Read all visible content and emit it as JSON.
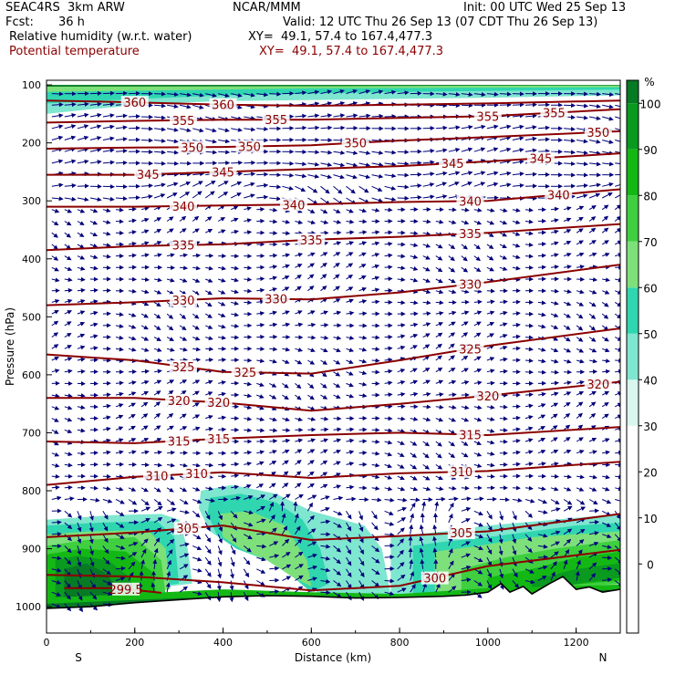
{
  "header": {
    "model_label": "SEAC4RS  3km ARW",
    "center": "NCAR/MMM",
    "init": "Init: 00 UTC Wed 25 Sep 13",
    "fcst_label": "Fcst:",
    "fcst_value": "36 h",
    "valid": "Valid: 12 UTC Thu 26 Sep 13 (07 CDT Thu 26 Sep 13)",
    "field1": "Relative humidity (w.r.t. water)",
    "field1_xy": "XY=  49.1, 57.4 to 167.4,477.3",
    "field2": "Potential temperature",
    "field2_xy": "XY=  49.1, 57.4 to 167.4,477.3"
  },
  "colors": {
    "theta_line": "#8b0000",
    "wind_arrow": "#00007a",
    "terrain_line": "#000000",
    "rh_bins": [
      "#d9f7ef",
      "#7fe6cf",
      "#2fd6b0",
      "#7ee07a",
      "#3fcf3f",
      "#14b814",
      "#0a9a1f",
      "#077a24"
    ]
  },
  "chart_data": {
    "type": "heatmap",
    "xlabel": "Distance (km)",
    "ylabel": "Pressure (hPa)",
    "xlim": [
      0,
      1300
    ],
    "ylim": [
      100,
      1000
    ],
    "x_ticks": [
      "0",
      "200",
      "400",
      "600",
      "800",
      "1000",
      "1200"
    ],
    "y_ticks": [
      "100",
      "200",
      "300",
      "400",
      "500",
      "600",
      "700",
      "800",
      "900",
      "1000"
    ],
    "direction_left": "S",
    "direction_right": "N",
    "colorbar": {
      "unit": "%",
      "ticks": [
        "0",
        "10",
        "20",
        "30",
        "40",
        "50",
        "60",
        "70",
        "80",
        "90",
        "100"
      ],
      "levels": [
        30,
        40,
        50,
        60,
        70,
        80,
        90,
        100
      ]
    },
    "theta_contours": [
      {
        "value": "360",
        "points": [
          [
            0,
            127
          ],
          [
            200,
            130
          ],
          [
            400,
            134
          ],
          [
            600,
            136
          ],
          [
            800,
            134
          ],
          [
            1000,
            132
          ],
          [
            1300,
            127
          ]
        ],
        "labels": [
          [
            200,
            "360"
          ],
          [
            400,
            "360"
          ]
        ]
      },
      {
        "value": "355",
        "points": [
          [
            0,
            165
          ],
          [
            200,
            162
          ],
          [
            400,
            160
          ],
          [
            600,
            160
          ],
          [
            800,
            157
          ],
          [
            1000,
            154
          ],
          [
            1300,
            142
          ]
        ],
        "labels": [
          [
            310,
            "355"
          ],
          [
            520,
            "355"
          ],
          [
            1000,
            "355"
          ],
          [
            1150,
            "355"
          ]
        ]
      },
      {
        "value": "350",
        "points": [
          [
            0,
            210
          ],
          [
            200,
            208
          ],
          [
            400,
            207
          ],
          [
            600,
            204
          ],
          [
            800,
            196
          ],
          [
            1000,
            190
          ],
          [
            1300,
            180
          ]
        ],
        "labels": [
          [
            330,
            "350"
          ],
          [
            460,
            "350"
          ],
          [
            700,
            "350"
          ],
          [
            1250,
            "350"
          ]
        ]
      },
      {
        "value": "345",
        "points": [
          [
            0,
            255
          ],
          [
            200,
            255
          ],
          [
            400,
            250
          ],
          [
            600,
            245
          ],
          [
            800,
            240
          ],
          [
            1000,
            232
          ],
          [
            1300,
            218
          ]
        ],
        "labels": [
          [
            230,
            "345"
          ],
          [
            400,
            "345"
          ],
          [
            920,
            "345"
          ],
          [
            1120,
            "345"
          ]
        ]
      },
      {
        "value": "340",
        "points": [
          [
            0,
            310
          ],
          [
            200,
            310
          ],
          [
            400,
            308
          ],
          [
            600,
            306
          ],
          [
            800,
            302
          ],
          [
            1000,
            300
          ],
          [
            1300,
            280
          ]
        ],
        "labels": [
          [
            310,
            "340"
          ],
          [
            560,
            "340"
          ],
          [
            960,
            "340"
          ],
          [
            1160,
            "340"
          ]
        ]
      },
      {
        "value": "335",
        "points": [
          [
            0,
            385
          ],
          [
            200,
            378
          ],
          [
            400,
            375
          ],
          [
            600,
            367
          ],
          [
            800,
            362
          ],
          [
            1000,
            355
          ],
          [
            1300,
            340
          ]
        ],
        "labels": [
          [
            310,
            "335"
          ],
          [
            600,
            "335"
          ],
          [
            960,
            "335"
          ]
        ]
      },
      {
        "value": "330",
        "points": [
          [
            0,
            480
          ],
          [
            200,
            475
          ],
          [
            400,
            468
          ],
          [
            600,
            470
          ],
          [
            800,
            458
          ],
          [
            1000,
            440
          ],
          [
            1300,
            410
          ]
        ],
        "labels": [
          [
            310,
            "330"
          ],
          [
            520,
            "330"
          ],
          [
            960,
            "330"
          ]
        ]
      },
      {
        "value": "325",
        "points": [
          [
            0,
            565
          ],
          [
            200,
            575
          ],
          [
            400,
            595
          ],
          [
            600,
            598
          ],
          [
            800,
            575
          ],
          [
            1000,
            550
          ],
          [
            1300,
            520
          ]
        ],
        "labels": [
          [
            310,
            "325"
          ],
          [
            450,
            "325"
          ],
          [
            960,
            "325"
          ]
        ]
      },
      {
        "value": "320",
        "points": [
          [
            0,
            640
          ],
          [
            200,
            640
          ],
          [
            400,
            648
          ],
          [
            600,
            662
          ],
          [
            800,
            650
          ],
          [
            1000,
            636
          ],
          [
            1300,
            612
          ]
        ],
        "labels": [
          [
            300,
            "320"
          ],
          [
            390,
            "320"
          ],
          [
            1000,
            "320"
          ],
          [
            1250,
            "320"
          ]
        ]
      },
      {
        "value": "315",
        "points": [
          [
            0,
            715
          ],
          [
            200,
            718
          ],
          [
            400,
            710
          ],
          [
            600,
            704
          ],
          [
            800,
            700
          ],
          [
            1000,
            704
          ],
          [
            1300,
            690
          ]
        ],
        "labels": [
          [
            300,
            "315"
          ],
          [
            390,
            "315"
          ],
          [
            960,
            "315"
          ]
        ]
      },
      {
        "value": "310",
        "points": [
          [
            0,
            790
          ],
          [
            200,
            776
          ],
          [
            400,
            768
          ],
          [
            600,
            778
          ],
          [
            800,
            770
          ],
          [
            1000,
            766
          ],
          [
            1300,
            750
          ]
        ],
        "labels": [
          [
            250,
            "310"
          ],
          [
            340,
            "310"
          ],
          [
            940,
            "310"
          ]
        ]
      },
      {
        "value": "305",
        "points": [
          [
            0,
            880
          ],
          [
            200,
            872
          ],
          [
            400,
            860
          ],
          [
            600,
            885
          ],
          [
            800,
            878
          ],
          [
            1000,
            870
          ],
          [
            1300,
            840
          ]
        ],
        "labels": [
          [
            320,
            "305"
          ],
          [
            940,
            "305"
          ]
        ]
      },
      {
        "value": "300",
        "points": [
          [
            0,
            945
          ],
          [
            200,
            948
          ],
          [
            400,
            958
          ],
          [
            600,
            972
          ],
          [
            800,
            964
          ],
          [
            1000,
            930
          ],
          [
            1300,
            902
          ]
        ],
        "labels": [
          [
            880,
            "300"
          ]
        ]
      },
      {
        "value": "299.5",
        "points": [
          [
            40,
            968
          ],
          [
            160,
            968
          ],
          [
            260,
            976
          ]
        ],
        "labels": [
          [
            180,
            "299.5"
          ]
        ]
      }
    ]
  }
}
